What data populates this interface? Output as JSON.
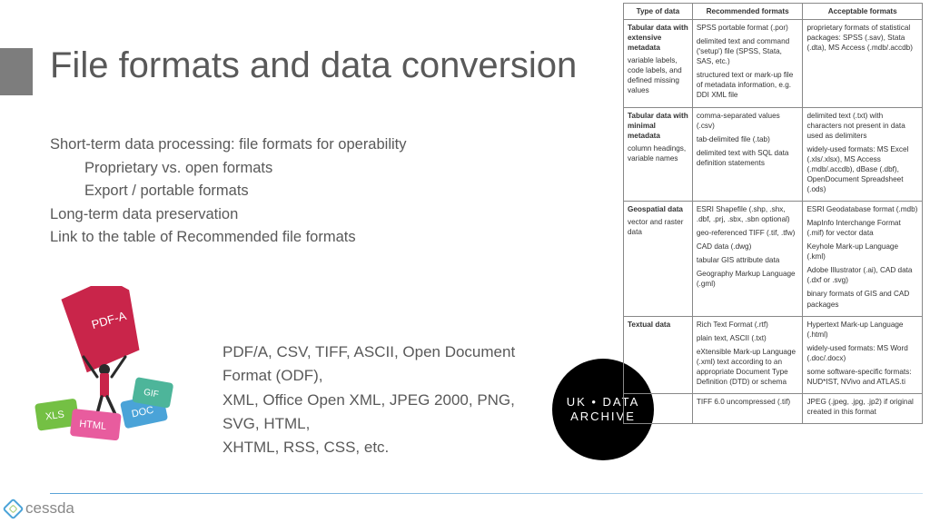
{
  "title": "File formats and data conversion",
  "body": {
    "l1": "Short-term data processing: file formats for operability",
    "l2": "Proprietary vs. open formats",
    "l3": "Export / portable formats",
    "l4": "Long-term data preservation",
    "l5": "Link to the table of Recommended file formats"
  },
  "formats": {
    "p1": "PDF/A, CSV, TIFF, ASCII, Open Document  Format (ODF),",
    "p2": "XML, Office Open XML, JPEG 2000, PNG,  SVG, HTML,",
    "p3": "XHTML, RSS, CSS, etc."
  },
  "ukda": {
    "l1": "UK • DATA",
    "l2": "ARCHIVE"
  },
  "footer": "cessda",
  "table": {
    "head": [
      "Type of data",
      "Recommended formats",
      "Acceptable formats"
    ],
    "rows": [
      {
        "c0h": "Tabular data with extensive metadata",
        "c0s": "variable labels, code labels, and defined missing values",
        "c1": [
          "SPSS portable format (.por)",
          "delimited text and command ('setup') file (SPSS, Stata, SAS, etc.)",
          "structured text or mark-up file of metadata information, e.g. DDI XML file"
        ],
        "c2": [
          "proprietary formats of statistical packages: SPSS (.sav), Stata (.dta), MS Access (.mdb/.accdb)"
        ]
      },
      {
        "c0h": "Tabular data with minimal metadata",
        "c0s": "column headings, variable names",
        "c1": [
          "comma-separated values (.csv)",
          "tab-delimited file (.tab)",
          "delimited text with SQL data definition statements"
        ],
        "c2": [
          "delimited text (.txt) with characters not present in data used as delimiters",
          "widely-used formats: MS Excel (.xls/.xlsx), MS Access (.mdb/.accdb), dBase (.dbf), OpenDocument Spreadsheet (.ods)"
        ]
      },
      {
        "c0h": "Geospatial data",
        "c0s": "vector and raster data",
        "c1": [
          "ESRI Shapefile (.shp, .shx, .dbf, .prj, .sbx, .sbn optional)",
          "geo-referenced TIFF (.tif, .tfw)",
          "CAD data (.dwg)",
          "tabular GIS attribute data",
          "Geography Markup Language (.gml)"
        ],
        "c2": [
          "ESRI Geodatabase format (.mdb)",
          "MapInfo Interchange Format (.mif) for vector data",
          "Keyhole Mark-up Language (.kml)",
          "Adobe Illustrator (.ai), CAD data (.dxf or .svg)",
          "binary formats of GIS and CAD packages"
        ]
      },
      {
        "c0h": "Textual data",
        "c0s": "",
        "c1": [
          "Rich Text Format (.rtf)",
          "plain text, ASCII (.txt)",
          "eXtensible Mark-up Language (.xml) text according to an appropriate Document Type Definition (DTD) or schema"
        ],
        "c2": [
          "Hypertext Mark-up Language (.html)",
          "widely-used formats: MS Word (.doc/.docx)",
          "some software-specific formats: NUD*IST, NVivo and ATLAS.ti"
        ]
      },
      {
        "c0h": "",
        "c0s": "",
        "c1": [
          "TIFF 6.0 uncompressed (.tif)"
        ],
        "c2": [
          "JPEG (.jpeg, .jpg, .jp2) if original created in this format"
        ]
      }
    ]
  },
  "colors": {
    "bar": "#7d7d7d",
    "text": "#595959",
    "pdf": "#c9254a",
    "xls": "#74c044",
    "html": "#e85c9e",
    "doc": "#4aa3d8",
    "gif": "#4db59a"
  }
}
